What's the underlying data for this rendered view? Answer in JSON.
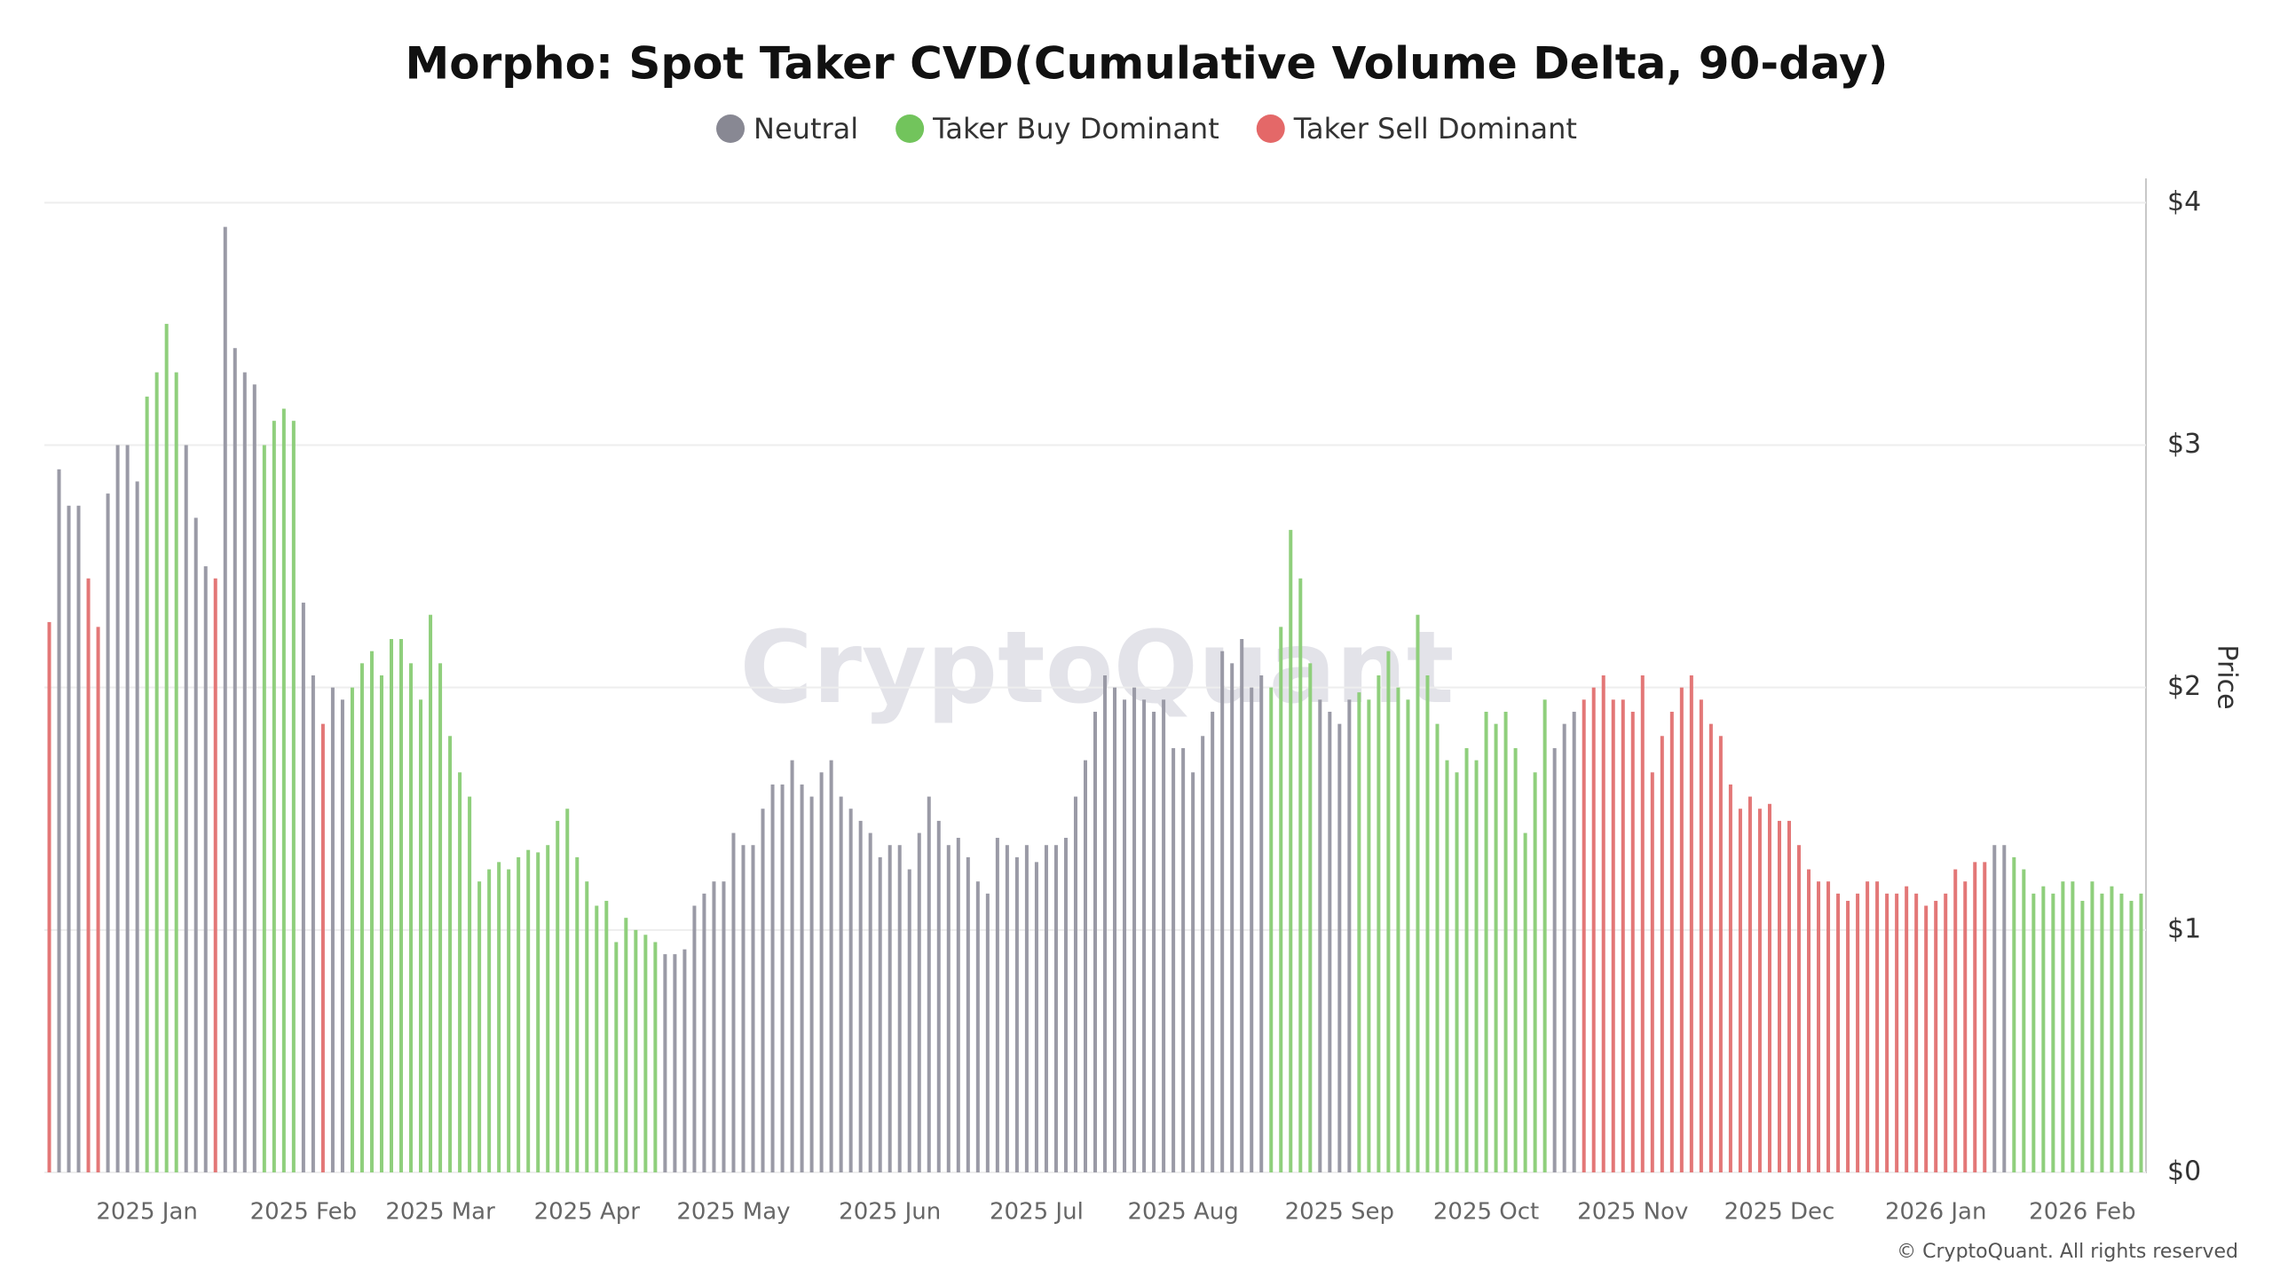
{
  "chart_data": {
    "type": "bar",
    "title": "Morpho: Spot Taker CVD(Cumulative Volume Delta, 90-day)",
    "y_axis_label": "Price",
    "watermark": "CryptoQuant",
    "credit": "© CryptoQuant. All rights reserved",
    "ylim": [
      0,
      4.1
    ],
    "yticks": [
      {
        "value": 0,
        "label": "$0"
      },
      {
        "value": 1,
        "label": "$1"
      },
      {
        "value": 2,
        "label": "$2"
      },
      {
        "value": 3,
        "label": "$3"
      },
      {
        "value": 4,
        "label": "$4"
      }
    ],
    "grid": true,
    "categories": [
      null,
      null,
      null,
      null,
      null,
      null,
      null,
      null,
      null,
      null,
      "2025 Jan",
      null,
      null,
      null,
      null,
      null,
      null,
      null,
      null,
      null,
      null,
      null,
      null,
      null,
      null,
      null,
      "2025 Feb",
      null,
      null,
      null,
      null,
      null,
      null,
      null,
      null,
      null,
      null,
      null,
      null,
      null,
      "2025 Mar",
      null,
      null,
      null,
      null,
      null,
      null,
      null,
      null,
      null,
      null,
      null,
      null,
      null,
      null,
      "2025 Apr",
      null,
      null,
      null,
      null,
      null,
      null,
      null,
      null,
      null,
      null,
      null,
      null,
      null,
      null,
      "2025 May",
      null,
      null,
      null,
      null,
      null,
      null,
      null,
      null,
      null,
      null,
      null,
      null,
      null,
      null,
      null,
      "2025 Jun",
      null,
      null,
      null,
      null,
      null,
      null,
      null,
      null,
      null,
      null,
      null,
      null,
      null,
      null,
      "2025 Jul",
      null,
      null,
      null,
      null,
      null,
      null,
      null,
      null,
      null,
      null,
      null,
      null,
      null,
      null,
      "2025 Aug",
      null,
      null,
      null,
      null,
      null,
      null,
      null,
      null,
      null,
      null,
      null,
      null,
      null,
      null,
      null,
      "2025 Sep",
      null,
      null,
      null,
      null,
      null,
      null,
      null,
      null,
      null,
      null,
      null,
      null,
      null,
      null,
      "2025 Oct",
      null,
      null,
      null,
      null,
      null,
      null,
      null,
      null,
      null,
      null,
      null,
      null,
      null,
      null,
      "2025 Nov",
      null,
      null,
      null,
      null,
      null,
      null,
      null,
      null,
      null,
      null,
      null,
      null,
      null,
      null,
      "2025 Dec",
      null,
      null,
      null,
      null,
      null,
      null,
      null,
      null,
      null,
      null,
      null,
      null,
      null,
      null,
      null,
      "2026 Jan",
      null,
      null,
      null,
      null,
      null,
      null,
      null,
      null,
      null,
      null,
      null,
      null,
      null,
      null,
      "2026 Feb",
      null,
      null,
      null,
      null,
      null,
      null
    ],
    "series": [
      {
        "name": "Neutral",
        "color": "#9a9aa6",
        "legend_color": "#888893",
        "values": [
          null,
          2.9,
          2.75,
          2.75,
          null,
          null,
          2.8,
          3.0,
          3.0,
          2.85,
          null,
          null,
          null,
          null,
          3.0,
          2.7,
          2.5,
          null,
          3.9,
          3.4,
          3.3,
          3.25,
          null,
          null,
          null,
          null,
          2.35,
          2.05,
          null,
          2.0,
          1.95,
          null,
          null,
          null,
          null,
          null,
          null,
          null,
          null,
          null,
          null,
          null,
          null,
          null,
          null,
          null,
          null,
          null,
          null,
          null,
          null,
          null,
          null,
          null,
          null,
          null,
          null,
          null,
          null,
          null,
          null,
          null,
          null,
          0.9,
          0.9,
          0.92,
          1.1,
          1.15,
          1.2,
          1.2,
          1.4,
          1.35,
          1.35,
          1.5,
          1.6,
          1.6,
          1.7,
          1.6,
          1.55,
          1.65,
          1.7,
          1.55,
          1.5,
          1.45,
          1.4,
          1.3,
          1.35,
          1.35,
          1.25,
          1.4,
          1.55,
          1.45,
          1.35,
          1.38,
          1.3,
          1.2,
          1.15,
          1.38,
          1.35,
          1.3,
          1.35,
          1.28,
          1.35,
          1.35,
          1.38,
          1.55,
          1.7,
          1.9,
          2.05,
          2.0,
          1.95,
          2.0,
          1.95,
          1.9,
          1.95,
          1.75,
          1.75,
          1.65,
          1.8,
          1.9,
          2.15,
          2.1,
          2.2,
          2.0,
          2.05,
          null,
          null,
          null,
          null,
          null,
          1.95,
          1.9,
          1.85,
          1.95,
          null,
          null,
          null,
          null,
          null,
          null,
          null,
          null,
          null,
          null,
          null,
          null,
          null,
          null,
          null,
          null,
          null,
          null,
          null,
          null,
          1.75,
          1.85,
          1.9,
          null,
          null,
          null,
          null,
          null,
          null,
          null,
          null,
          null,
          null,
          null,
          null,
          null,
          null,
          null,
          null,
          null,
          null,
          null,
          null,
          null,
          null,
          null,
          null,
          null,
          null,
          null,
          null,
          null,
          null,
          null,
          null,
          null,
          null,
          null,
          null,
          null,
          null,
          null,
          null,
          null,
          null,
          1.35,
          1.35,
          null,
          null,
          null,
          null,
          null,
          null,
          null,
          null,
          null,
          null,
          null,
          null,
          null,
          null
        ]
      },
      {
        "name": "Taker Buy Dominant",
        "color": "#8fcf7c",
        "legend_color": "#72c45c",
        "values": [
          null,
          null,
          null,
          null,
          null,
          null,
          null,
          null,
          null,
          null,
          3.2,
          3.3,
          3.5,
          3.3,
          null,
          null,
          null,
          null,
          null,
          null,
          null,
          null,
          3.0,
          3.1,
          3.15,
          3.1,
          null,
          null,
          null,
          null,
          null,
          2.0,
          2.1,
          2.15,
          2.05,
          2.2,
          2.2,
          2.1,
          1.95,
          2.3,
          2.1,
          1.8,
          1.65,
          1.55,
          1.2,
          1.25,
          1.28,
          1.25,
          1.3,
          1.33,
          1.32,
          1.35,
          1.45,
          1.5,
          1.3,
          1.2,
          1.1,
          1.12,
          0.95,
          1.05,
          1.0,
          0.98,
          0.95,
          null,
          null,
          null,
          null,
          null,
          null,
          null,
          null,
          null,
          null,
          null,
          null,
          null,
          null,
          null,
          null,
          null,
          null,
          null,
          null,
          null,
          null,
          null,
          null,
          null,
          null,
          null,
          null,
          null,
          null,
          null,
          null,
          null,
          null,
          null,
          null,
          null,
          null,
          null,
          null,
          null,
          null,
          null,
          null,
          null,
          null,
          null,
          null,
          null,
          null,
          null,
          null,
          null,
          null,
          null,
          null,
          null,
          null,
          null,
          null,
          null,
          null,
          2.0,
          2.25,
          2.65,
          2.45,
          2.1,
          null,
          null,
          null,
          null,
          1.98,
          1.95,
          2.05,
          2.15,
          2.0,
          1.95,
          2.3,
          2.05,
          1.85,
          1.7,
          1.65,
          1.75,
          1.7,
          1.9,
          1.85,
          1.9,
          1.75,
          1.4,
          1.65,
          1.95,
          null,
          null,
          null,
          null,
          null,
          null,
          null,
          null,
          null,
          null,
          null,
          null,
          null,
          null,
          null,
          null,
          null,
          null,
          null,
          null,
          null,
          null,
          null,
          null,
          null,
          null,
          null,
          null,
          null,
          null,
          null,
          null,
          null,
          null,
          null,
          null,
          null,
          null,
          null,
          null,
          null,
          null,
          null,
          null,
          null,
          null,
          null,
          1.3,
          1.25,
          1.15,
          1.18,
          1.15,
          1.2,
          1.2,
          1.12,
          1.2,
          1.15,
          1.18,
          1.15,
          1.12,
          1.15
        ]
      },
      {
        "name": "Taker Sell Dominant",
        "color": "#e37777",
        "legend_color": "#e46868",
        "values": [
          2.27,
          null,
          null,
          null,
          2.45,
          2.25,
          null,
          null,
          null,
          null,
          null,
          null,
          null,
          null,
          null,
          null,
          null,
          2.45,
          null,
          null,
          null,
          null,
          null,
          null,
          null,
          null,
          null,
          null,
          1.85,
          null,
          null,
          null,
          null,
          null,
          null,
          null,
          null,
          null,
          null,
          null,
          null,
          null,
          null,
          null,
          null,
          null,
          null,
          null,
          null,
          null,
          null,
          null,
          null,
          null,
          null,
          null,
          null,
          null,
          null,
          null,
          null,
          null,
          null,
          null,
          null,
          null,
          null,
          null,
          null,
          null,
          null,
          null,
          null,
          null,
          null,
          null,
          null,
          null,
          null,
          null,
          null,
          null,
          null,
          null,
          null,
          null,
          null,
          null,
          null,
          null,
          null,
          null,
          null,
          null,
          null,
          null,
          null,
          null,
          null,
          null,
          null,
          null,
          null,
          null,
          null,
          null,
          null,
          null,
          null,
          null,
          null,
          null,
          null,
          null,
          null,
          null,
          null,
          null,
          null,
          null,
          null,
          null,
          null,
          null,
          null,
          null,
          null,
          null,
          null,
          null,
          null,
          null,
          null,
          null,
          null,
          null,
          null,
          null,
          null,
          null,
          null,
          null,
          null,
          null,
          null,
          null,
          null,
          null,
          null,
          null,
          null,
          null,
          null,
          null,
          null,
          null,
          null,
          1.95,
          2.0,
          2.05,
          1.95,
          1.95,
          1.9,
          2.05,
          1.65,
          1.8,
          1.9,
          2.0,
          2.05,
          1.95,
          1.85,
          1.8,
          1.6,
          1.5,
          1.55,
          1.5,
          1.52,
          1.45,
          1.45,
          1.35,
          1.25,
          1.2,
          1.2,
          1.15,
          1.12,
          1.15,
          1.2,
          1.2,
          1.15,
          1.15,
          1.18,
          1.15,
          1.1,
          1.12,
          1.15,
          1.25,
          1.2,
          1.28,
          1.28,
          null,
          null,
          null,
          null,
          null,
          null,
          null,
          null,
          null,
          null,
          null,
          null,
          null,
          null,
          null,
          null
        ]
      }
    ]
  }
}
